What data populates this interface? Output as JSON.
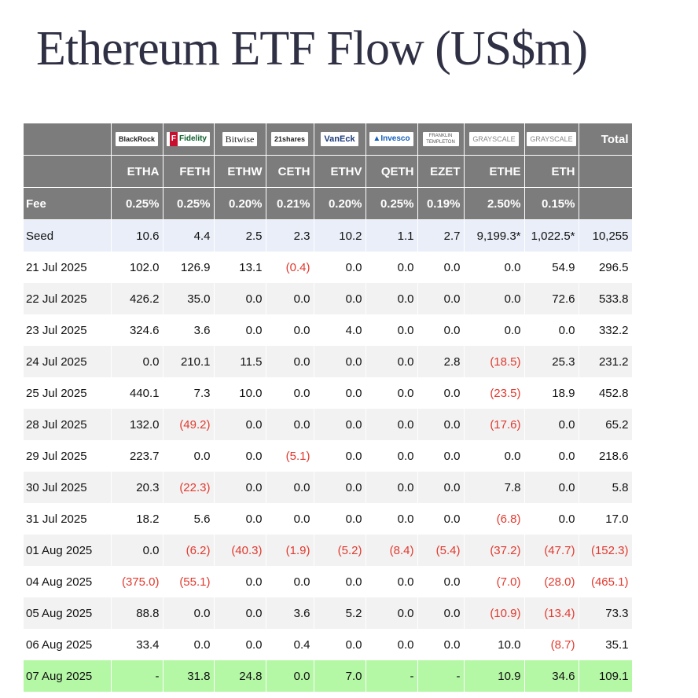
{
  "title": "Ethereum ETF Flow (US$m)",
  "colors": {
    "header_bg": "#7c7c7c",
    "seed_bg": "#e9eef8",
    "alt_bg": "#f2f2f2",
    "latest_bg": "#b4f7a5",
    "negative": "#e03a2f",
    "title": "#2f3044"
  },
  "issuers": [
    {
      "logo_text": "BlackRock",
      "ticker": "ETHA",
      "fee": "0.25%"
    },
    {
      "logo_text": "Fidelity",
      "ticker": "FETH",
      "fee": "0.25%"
    },
    {
      "logo_text": "Bitwise",
      "ticker": "ETHW",
      "fee": "0.20%"
    },
    {
      "logo_text": "21shares",
      "ticker": "CETH",
      "fee": "0.21%"
    },
    {
      "logo_text": "VanEck",
      "ticker": "ETHV",
      "fee": "0.20%"
    },
    {
      "logo_text": "Invesco",
      "ticker": "QETH",
      "fee": "0.25%"
    },
    {
      "logo_text": "FRANKLIN TEMPLETON",
      "ticker": "EZET",
      "fee": "0.19%"
    },
    {
      "logo_text": "GRAYSCALE",
      "ticker": "ETHE",
      "fee": "2.50%"
    },
    {
      "logo_text": "GRAYSCALE",
      "ticker": "ETH",
      "fee": "0.15%"
    }
  ],
  "total_label": "Total",
  "fee_label": "Fee",
  "seed": {
    "label": "Seed",
    "values": [
      "10.6",
      "4.4",
      "2.5",
      "2.3",
      "10.2",
      "1.1",
      "2.7",
      "9,199.3*",
      "1,022.5*"
    ],
    "total": "10,255"
  },
  "rows": [
    {
      "date": "21 Jul 2025",
      "values": [
        "102.0",
        "126.9",
        "13.1",
        "(0.4)",
        "0.0",
        "0.0",
        "0.0",
        "0.0",
        "54.9"
      ],
      "total": "296.5"
    },
    {
      "date": "22 Jul 2025",
      "values": [
        "426.2",
        "35.0",
        "0.0",
        "0.0",
        "0.0",
        "0.0",
        "0.0",
        "0.0",
        "72.6"
      ],
      "total": "533.8"
    },
    {
      "date": "23 Jul 2025",
      "values": [
        "324.6",
        "3.6",
        "0.0",
        "0.0",
        "4.0",
        "0.0",
        "0.0",
        "0.0",
        "0.0"
      ],
      "total": "332.2"
    },
    {
      "date": "24 Jul 2025",
      "values": [
        "0.0",
        "210.1",
        "11.5",
        "0.0",
        "0.0",
        "0.0",
        "2.8",
        "(18.5)",
        "25.3"
      ],
      "total": "231.2"
    },
    {
      "date": "25 Jul 2025",
      "values": [
        "440.1",
        "7.3",
        "10.0",
        "0.0",
        "0.0",
        "0.0",
        "0.0",
        "(23.5)",
        "18.9"
      ],
      "total": "452.8"
    },
    {
      "date": "28 Jul 2025",
      "values": [
        "132.0",
        "(49.2)",
        "0.0",
        "0.0",
        "0.0",
        "0.0",
        "0.0",
        "(17.6)",
        "0.0"
      ],
      "total": "65.2"
    },
    {
      "date": "29 Jul 2025",
      "values": [
        "223.7",
        "0.0",
        "0.0",
        "(5.1)",
        "0.0",
        "0.0",
        "0.0",
        "0.0",
        "0.0"
      ],
      "total": "218.6"
    },
    {
      "date": "30 Jul 2025",
      "values": [
        "20.3",
        "(22.3)",
        "0.0",
        "0.0",
        "0.0",
        "0.0",
        "0.0",
        "7.8",
        "0.0"
      ],
      "total": "5.8"
    },
    {
      "date": "31 Jul 2025",
      "values": [
        "18.2",
        "5.6",
        "0.0",
        "0.0",
        "0.0",
        "0.0",
        "0.0",
        "(6.8)",
        "0.0"
      ],
      "total": "17.0"
    },
    {
      "date": "01 Aug 2025",
      "values": [
        "0.0",
        "(6.2)",
        "(40.3)",
        "(1.9)",
        "(5.2)",
        "(8.4)",
        "(5.4)",
        "(37.2)",
        "(47.7)"
      ],
      "total": "(152.3)"
    },
    {
      "date": "04 Aug 2025",
      "values": [
        "(375.0)",
        "(55.1)",
        "0.0",
        "0.0",
        "0.0",
        "0.0",
        "0.0",
        "(7.0)",
        "(28.0)"
      ],
      "total": "(465.1)"
    },
    {
      "date": "05 Aug 2025",
      "values": [
        "88.8",
        "0.0",
        "0.0",
        "3.6",
        "5.2",
        "0.0",
        "0.0",
        "(10.9)",
        "(13.4)"
      ],
      "total": "73.3"
    },
    {
      "date": "06 Aug 2025",
      "values": [
        "33.4",
        "0.0",
        "0.0",
        "0.4",
        "0.0",
        "0.0",
        "0.0",
        "10.0",
        "(8.7)"
      ],
      "total": "35.1"
    },
    {
      "date": "07 Aug 2025",
      "values": [
        "-",
        "31.8",
        "24.8",
        "0.0",
        "7.0",
        "-",
        "-",
        "10.9",
        "34.6"
      ],
      "total": "109.1"
    }
  ],
  "chart_data": {
    "type": "table",
    "title": "Ethereum ETF Flow (US$m)",
    "columns": [
      "ETHA",
      "FETH",
      "ETHW",
      "CETH",
      "ETHV",
      "QETH",
      "EZET",
      "ETHE",
      "ETH",
      "Total"
    ],
    "fees": [
      "0.25%",
      "0.25%",
      "0.20%",
      "0.21%",
      "0.20%",
      "0.25%",
      "0.19%",
      "2.50%",
      "0.15%"
    ],
    "seed": [
      10.6,
      4.4,
      2.5,
      2.3,
      10.2,
      1.1,
      2.7,
      9199.3,
      1022.5,
      10255
    ],
    "dates": [
      "21 Jul 2025",
      "22 Jul 2025",
      "23 Jul 2025",
      "24 Jul 2025",
      "25 Jul 2025",
      "28 Jul 2025",
      "29 Jul 2025",
      "30 Jul 2025",
      "31 Jul 2025",
      "01 Aug 2025",
      "04 Aug 2025",
      "05 Aug 2025",
      "06 Aug 2025",
      "07 Aug 2025"
    ],
    "rows": [
      [
        102.0,
        126.9,
        13.1,
        -0.4,
        0.0,
        0.0,
        0.0,
        0.0,
        54.9,
        296.5
      ],
      [
        426.2,
        35.0,
        0.0,
        0.0,
        0.0,
        0.0,
        0.0,
        0.0,
        72.6,
        533.8
      ],
      [
        324.6,
        3.6,
        0.0,
        0.0,
        4.0,
        0.0,
        0.0,
        0.0,
        0.0,
        332.2
      ],
      [
        0.0,
        210.1,
        11.5,
        0.0,
        0.0,
        0.0,
        2.8,
        -18.5,
        25.3,
        231.2
      ],
      [
        440.1,
        7.3,
        10.0,
        0.0,
        0.0,
        0.0,
        0.0,
        -23.5,
        18.9,
        452.8
      ],
      [
        132.0,
        -49.2,
        0.0,
        0.0,
        0.0,
        0.0,
        0.0,
        -17.6,
        0.0,
        65.2
      ],
      [
        223.7,
        0.0,
        0.0,
        -5.1,
        0.0,
        0.0,
        0.0,
        0.0,
        0.0,
        218.6
      ],
      [
        20.3,
        -22.3,
        0.0,
        0.0,
        0.0,
        0.0,
        0.0,
        7.8,
        0.0,
        5.8
      ],
      [
        18.2,
        5.6,
        0.0,
        0.0,
        0.0,
        0.0,
        0.0,
        -6.8,
        0.0,
        17.0
      ],
      [
        0.0,
        -6.2,
        -40.3,
        -1.9,
        -5.2,
        -8.4,
        -5.4,
        -37.2,
        -47.7,
        -152.3
      ],
      [
        -375.0,
        -55.1,
        0.0,
        0.0,
        0.0,
        0.0,
        0.0,
        -7.0,
        -28.0,
        -465.1
      ],
      [
        88.8,
        0.0,
        0.0,
        3.6,
        5.2,
        0.0,
        0.0,
        -10.9,
        -13.4,
        73.3
      ],
      [
        33.4,
        0.0,
        0.0,
        0.4,
        0.0,
        0.0,
        0.0,
        10.0,
        -8.7,
        35.1
      ],
      [
        null,
        31.8,
        24.8,
        0.0,
        7.0,
        null,
        null,
        10.9,
        34.6,
        109.1
      ]
    ]
  }
}
